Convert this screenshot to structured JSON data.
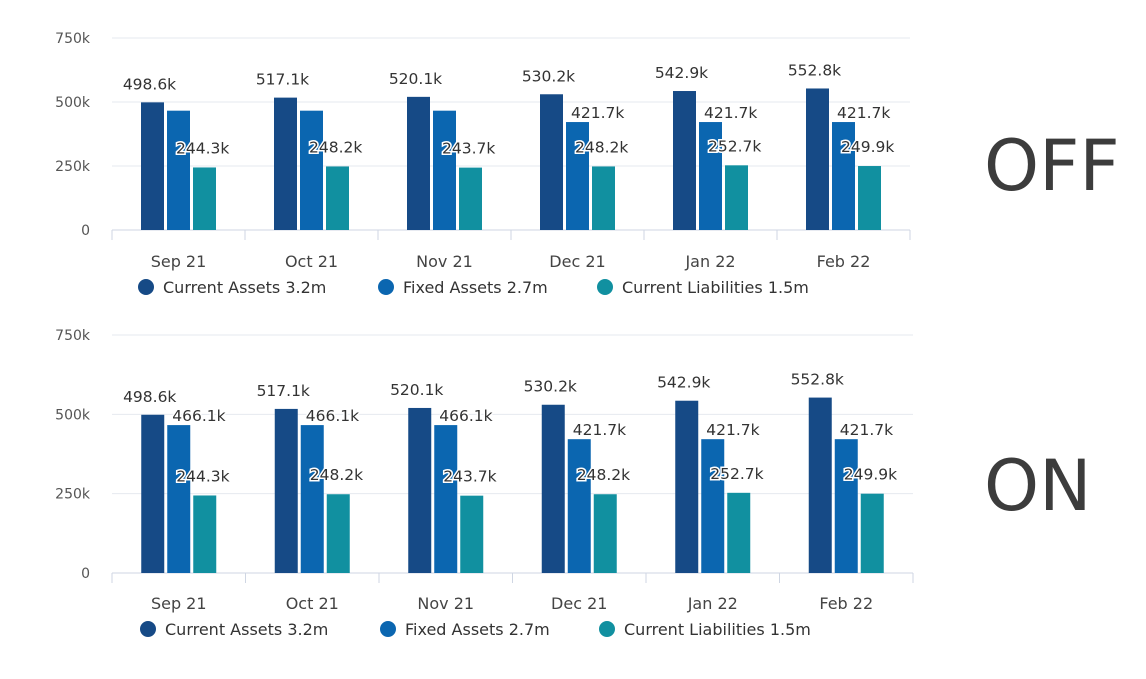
{
  "colors": {
    "current_assets": "#164a86",
    "fixed_assets": "#0b66b0",
    "current_liabilities": "#1190a0"
  },
  "labels": {
    "state_off": "OFF",
    "state_on": "ON"
  },
  "chart_data": [
    {
      "type": "bar",
      "state_label": "OFF",
      "categories": [
        "Sep 21",
        "Oct 21",
        "Nov 21",
        "Dec 21",
        "Jan 22",
        "Feb 22"
      ],
      "yticks": [
        "0",
        "250k",
        "500k",
        "750k"
      ],
      "ylim": [
        0,
        750000
      ],
      "grid": true,
      "legend_position": "bottom",
      "series": [
        {
          "name": "Current Assets",
          "total_label": "3.2m",
          "color": "#164a86",
          "values": [
            498600,
            517100,
            520100,
            530200,
            542900,
            552800
          ],
          "labels": [
            "498.6k",
            "517.1k",
            "520.1k",
            "530.2k",
            "542.9k",
            "552.8k"
          ]
        },
        {
          "name": "Fixed Assets",
          "total_label": "2.7m",
          "color": "#0b66b0",
          "values": [
            466100,
            466100,
            466100,
            421700,
            421700,
            421700
          ],
          "labels": [
            "",
            "",
            "",
            "421.7k",
            "421.7k",
            "421.7k"
          ]
        },
        {
          "name": "Current Liabilities",
          "total_label": "1.5m",
          "color": "#1190a0",
          "values": [
            244300,
            248200,
            243700,
            248200,
            252700,
            249900
          ],
          "labels": [
            "244.3k",
            "248.2k",
            "243.7k",
            "248.2k",
            "252.7k",
            "249.9k"
          ]
        }
      ]
    },
    {
      "type": "bar",
      "state_label": "ON",
      "categories": [
        "Sep 21",
        "Oct 21",
        "Nov 21",
        "Dec 21",
        "Jan 22",
        "Feb 22"
      ],
      "yticks": [
        "0",
        "250k",
        "500k",
        "750k"
      ],
      "ylim": [
        0,
        750000
      ],
      "grid": true,
      "legend_position": "bottom",
      "series": [
        {
          "name": "Current Assets",
          "total_label": "3.2m",
          "color": "#164a86",
          "values": [
            498600,
            517100,
            520100,
            530200,
            542900,
            552800
          ],
          "labels": [
            "498.6k",
            "517.1k",
            "520.1k",
            "530.2k",
            "542.9k",
            "552.8k"
          ]
        },
        {
          "name": "Fixed Assets",
          "total_label": "2.7m",
          "color": "#0b66b0",
          "values": [
            466100,
            466100,
            466100,
            421700,
            421700,
            421700
          ],
          "labels": [
            "466.1k",
            "466.1k",
            "466.1k",
            "421.7k",
            "421.7k",
            "421.7k"
          ]
        },
        {
          "name": "Current Liabilities",
          "total_label": "1.5m",
          "color": "#1190a0",
          "values": [
            244300,
            248200,
            243700,
            248200,
            252700,
            249900
          ],
          "labels": [
            "244.3k",
            "248.2k",
            "243.7k",
            "248.2k",
            "252.7k",
            "249.9k"
          ]
        }
      ]
    }
  ]
}
